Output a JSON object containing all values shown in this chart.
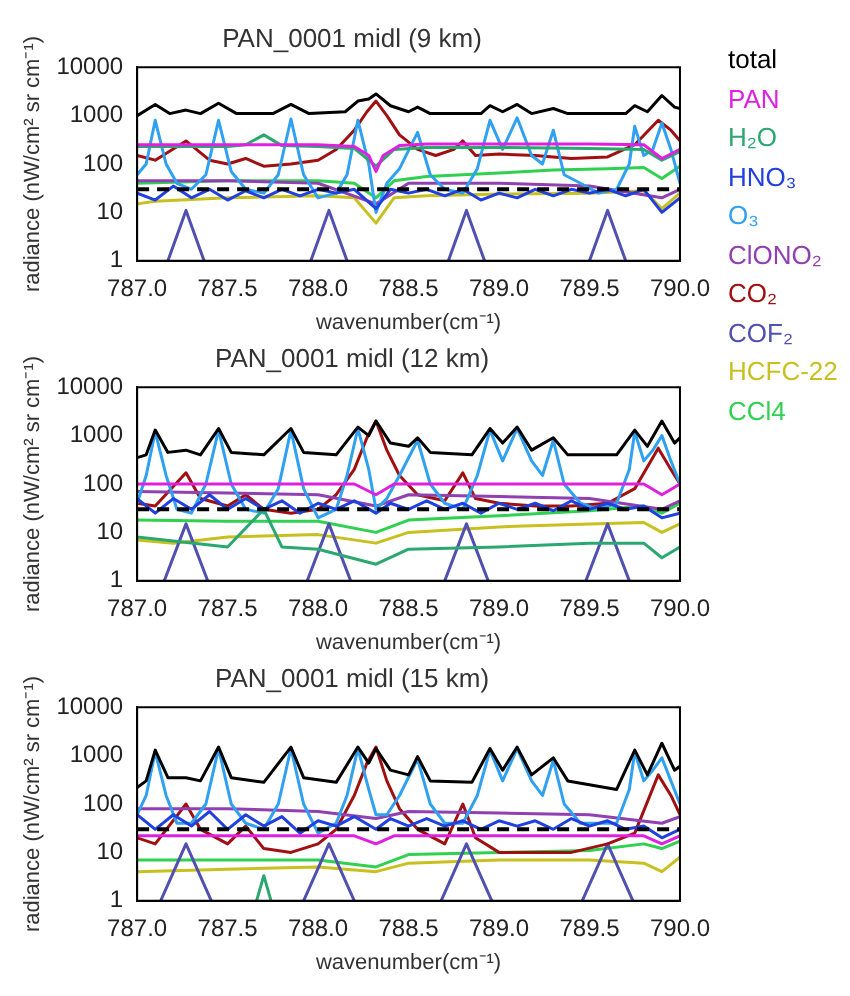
{
  "chart_data": [
    {
      "type": "line",
      "title": "PAN_0001 midl (9 km)",
      "xlabel": "wavenumber(cm⁻¹)",
      "ylabel": "radiance (nW/cm² sr cm⁻¹)",
      "log": "y",
      "legend": "right",
      "xlim": [
        787,
        790
      ],
      "xticks": [
        {
          "value": 787,
          "label": "787.0"
        },
        {
          "value": 787.5,
          "label": "787.5"
        },
        {
          "value": 788,
          "label": "788.0"
        },
        {
          "value": 788.5,
          "label": "788.5"
        },
        {
          "value": 789,
          "label": "789.0"
        },
        {
          "value": 789.5,
          "label": "789.5"
        },
        {
          "value": 790,
          "label": "790.0"
        }
      ],
      "ylim": [
        1,
        10000
      ],
      "yticks": [
        1,
        10,
        100,
        1000,
        10000
      ],
      "ref_lines": [
        {
          "axis": "y",
          "value": 30,
          "color": "#000000",
          "line_style": "dashed"
        }
      ],
      "series": [
        {
          "name": "total",
          "color": "#000000",
          "x": [
            787.0,
            787.1,
            787.18,
            787.27,
            787.35,
            787.45,
            787.55,
            787.75,
            787.85,
            787.95,
            788.15,
            788.22,
            788.28,
            788.32,
            788.4,
            788.5,
            788.55,
            788.62,
            788.9,
            788.95,
            789.02,
            789.1,
            789.18,
            789.3,
            789.38,
            789.7,
            789.75,
            789.82,
            789.9,
            789.97,
            790.0
          ],
          "values": [
            1000,
            1700,
            1100,
            1300,
            1100,
            1800,
            1100,
            1100,
            1700,
            1100,
            1200,
            2000,
            2200,
            2800,
            1600,
            1200,
            1500,
            1100,
            1100,
            1600,
            1200,
            1700,
            1100,
            1400,
            1100,
            1100,
            1600,
            1200,
            2600,
            1500,
            1400
          ]
        },
        {
          "name": "PAN",
          "color": "#e020e0",
          "x": [
            787.0,
            787.5,
            788.0,
            788.2,
            788.28,
            788.32,
            788.36,
            788.45,
            788.6,
            789.0,
            789.5,
            789.8,
            789.9,
            790.0
          ],
          "values": [
            250,
            250,
            250,
            230,
            150,
            70,
            150,
            240,
            260,
            260,
            260,
            250,
            130,
            200
          ]
        },
        {
          "name": "H₂O",
          "color": "#2aa870",
          "x": [
            787.0,
            787.5,
            787.6,
            787.7,
            787.8,
            788.0,
            788.2,
            788.32,
            788.42,
            788.6,
            789.0,
            789.5,
            789.8,
            789.9,
            790.0
          ],
          "values": [
            230,
            230,
            250,
            400,
            240,
            230,
            210,
            90,
            200,
            220,
            220,
            210,
            200,
            120,
            180
          ]
        },
        {
          "name": "HNO₃",
          "color": "#2040e0",
          "x": [
            787.0,
            787.1,
            787.2,
            787.3,
            787.4,
            787.5,
            787.6,
            787.7,
            787.8,
            787.9,
            788.0,
            788.1,
            788.2,
            788.32,
            788.4,
            788.5,
            788.6,
            788.7,
            788.8,
            788.9,
            789.0,
            789.1,
            789.2,
            789.3,
            789.4,
            789.5,
            789.6,
            789.7,
            789.8,
            789.9,
            790.0
          ],
          "values": [
            25,
            18,
            35,
            20,
            30,
            18,
            28,
            20,
            30,
            22,
            30,
            25,
            30,
            12,
            30,
            25,
            30,
            22,
            30,
            18,
            25,
            20,
            30,
            22,
            30,
            25,
            30,
            22,
            30,
            10,
            20
          ]
        },
        {
          "name": "O₃",
          "color": "#30a0f0",
          "x": [
            787.0,
            787.05,
            787.1,
            787.16,
            787.22,
            787.3,
            787.38,
            787.45,
            787.52,
            787.6,
            787.7,
            787.78,
            787.85,
            787.92,
            788.0,
            788.1,
            788.16,
            788.22,
            788.28,
            788.32,
            788.38,
            788.45,
            788.55,
            788.62,
            788.7,
            788.8,
            788.88,
            788.95,
            789.02,
            789.1,
            789.18,
            789.24,
            789.3,
            789.36,
            789.45,
            789.55,
            789.65,
            789.72,
            789.75,
            789.8,
            789.85,
            789.9,
            789.95,
            790.0
          ],
          "values": [
            60,
            100,
            800,
            100,
            40,
            30,
            60,
            800,
            70,
            30,
            25,
            60,
            850,
            60,
            20,
            25,
            60,
            800,
            100,
            10,
            40,
            80,
            450,
            60,
            30,
            25,
            80,
            800,
            200,
            900,
            150,
            100,
            500,
            60,
            40,
            25,
            30,
            100,
            600,
            150,
            200,
            700,
            200,
            40
          ]
        },
        {
          "name": "ClONO₂",
          "color": "#9040b0",
          "x": [
            787.0,
            787.5,
            788.0,
            788.32,
            788.5,
            789.0,
            789.5,
            789.9,
            790.0
          ],
          "values": [
            45,
            45,
            40,
            15,
            40,
            40,
            35,
            20,
            30
          ]
        },
        {
          "name": "CO₂",
          "color": "#a01010",
          "x": [
            787.0,
            787.1,
            787.27,
            787.4,
            787.5,
            787.6,
            787.7,
            787.85,
            788.0,
            788.1,
            788.2,
            788.27,
            788.32,
            788.38,
            788.45,
            788.55,
            788.65,
            788.75,
            788.8,
            788.87,
            789.0,
            789.2,
            789.4,
            789.6,
            789.75,
            789.88,
            789.95,
            790.0
          ],
          "values": [
            150,
            120,
            300,
            120,
            100,
            130,
            90,
            100,
            120,
            200,
            500,
            1200,
            2000,
            1000,
            400,
            200,
            150,
            200,
            300,
            150,
            160,
            150,
            130,
            140,
            250,
            800,
            500,
            300
          ]
        },
        {
          "name": "COF₂",
          "color": "#5050b0",
          "x": [
            787.17,
            787.27,
            787.37,
            787.7,
            787.96,
            788.06,
            788.16,
            788.5,
            788.72,
            788.82,
            788.92,
            789.2,
            789.5,
            789.6,
            789.7
          ],
          "values": [
            1,
            11,
            1,
            null,
            1,
            11,
            1,
            null,
            1,
            11,
            1,
            null,
            1,
            11,
            1
          ]
        },
        {
          "name": "HCFC-22",
          "color": "#c8c020",
          "x": [
            787.0,
            787.1,
            787.5,
            788.0,
            788.2,
            788.32,
            788.42,
            788.6,
            789.0,
            789.5,
            789.8,
            789.9,
            790.0
          ],
          "values": [
            15,
            17,
            20,
            22,
            20,
            6,
            20,
            22,
            24,
            25,
            28,
            12,
            25
          ]
        },
        {
          "name": "CCl4",
          "color": "#30d050",
          "x": [
            787.0,
            787.5,
            788.0,
            788.2,
            788.32,
            788.42,
            788.6,
            789.0,
            789.3,
            789.6,
            789.8,
            789.9,
            790.0
          ],
          "values": [
            40,
            45,
            45,
            40,
            20,
            45,
            55,
            65,
            75,
            80,
            85,
            50,
            90
          ]
        }
      ]
    },
    {
      "type": "line",
      "title": "PAN_0001 midl (12 km)",
      "xlabel": "wavenumber(cm⁻¹)",
      "ylabel": "radiance (nW/cm² sr cm⁻¹)",
      "log": "y",
      "xlim": [
        787,
        790
      ],
      "xticks": [
        {
          "value": 787,
          "label": "787.0"
        },
        {
          "value": 787.5,
          "label": "787.5"
        },
        {
          "value": 788,
          "label": "788.0"
        },
        {
          "value": 788.5,
          "label": "788.5"
        },
        {
          "value": 789,
          "label": "789.0"
        },
        {
          "value": 789.5,
          "label": "789.5"
        },
        {
          "value": 790,
          "label": "790.0"
        }
      ],
      "ylim": [
        1,
        10000
      ],
      "yticks": [
        1,
        10,
        100,
        1000,
        10000
      ],
      "ref_lines": [
        {
          "axis": "y",
          "value": 30,
          "color": "#000000",
          "line_style": "dashed"
        }
      ],
      "series": [
        {
          "color": "#000000",
          "x": [
            787.0,
            787.05,
            787.1,
            787.17,
            787.27,
            787.35,
            787.45,
            787.52,
            787.7,
            787.85,
            787.92,
            788.1,
            788.22,
            788.28,
            788.32,
            788.4,
            788.5,
            788.55,
            788.62,
            788.85,
            788.95,
            789.02,
            789.1,
            789.18,
            789.3,
            789.38,
            789.65,
            789.75,
            789.82,
            789.9,
            789.97,
            790.0
          ],
          "values": [
            350,
            400,
            1300,
            450,
            500,
            400,
            1400,
            450,
            400,
            1400,
            450,
            400,
            1500,
            1000,
            2000,
            700,
            600,
            900,
            450,
            400,
            1400,
            700,
            1500,
            500,
            900,
            400,
            400,
            1300,
            600,
            2000,
            700,
            900
          ]
        },
        {
          "color": "#e020e0",
          "x": [
            787.0,
            788.2,
            788.32,
            788.42,
            789.8,
            789.9,
            790.0
          ],
          "values": [
            100,
            100,
            60,
            100,
            100,
            60,
            100
          ]
        },
        {
          "color": "#2aa870",
          "x": [
            787.0,
            787.5,
            787.7,
            787.8,
            788.0,
            788.32,
            788.5,
            789.0,
            789.5,
            789.8,
            789.9,
            790.0
          ],
          "values": [
            8,
            5,
            30,
            5,
            4.5,
            2.2,
            4.5,
            5,
            6,
            6,
            3,
            5
          ]
        },
        {
          "color": "#2040e0",
          "x": [
            787.0,
            787.1,
            787.2,
            787.3,
            787.4,
            787.5,
            787.6,
            787.7,
            787.8,
            787.9,
            788.0,
            788.1,
            788.2,
            788.32,
            788.4,
            788.5,
            788.6,
            788.7,
            788.8,
            788.9,
            789.0,
            789.1,
            789.2,
            789.3,
            789.4,
            789.5,
            789.6,
            789.7,
            789.8,
            789.9,
            790.0
          ],
          "values": [
            50,
            25,
            50,
            30,
            60,
            30,
            50,
            30,
            45,
            25,
            40,
            30,
            45,
            25,
            40,
            30,
            45,
            30,
            40,
            25,
            40,
            30,
            40,
            28,
            45,
            30,
            40,
            30,
            35,
            20,
            25
          ]
        },
        {
          "color": "#30a0f0",
          "x": [
            787.0,
            787.05,
            787.1,
            787.16,
            787.22,
            787.3,
            787.38,
            787.45,
            787.52,
            787.6,
            787.7,
            787.78,
            787.85,
            787.92,
            788.0,
            788.1,
            788.16,
            788.22,
            788.28,
            788.32,
            788.38,
            788.45,
            788.55,
            788.62,
            788.7,
            788.8,
            788.88,
            788.95,
            789.02,
            789.1,
            789.18,
            789.24,
            789.3,
            789.36,
            789.45,
            789.55,
            789.65,
            789.72,
            789.75,
            789.8,
            789.85,
            789.9,
            789.95,
            790.0
          ],
          "values": [
            40,
            150,
            1200,
            150,
            30,
            25,
            100,
            1300,
            100,
            30,
            25,
            80,
            1300,
            80,
            20,
            30,
            150,
            1400,
            200,
            30,
            50,
            150,
            800,
            100,
            40,
            30,
            150,
            1300,
            300,
            1400,
            300,
            150,
            800,
            100,
            40,
            30,
            40,
            200,
            1200,
            300,
            500,
            1000,
            300,
            100
          ]
        },
        {
          "color": "#9040b0",
          "x": [
            787.0,
            787.5,
            788.0,
            788.32,
            788.5,
            789.0,
            789.5,
            789.9,
            790.0
          ],
          "values": [
            70,
            65,
            60,
            35,
            60,
            55,
            50,
            30,
            45
          ]
        },
        {
          "color": "#a01010",
          "x": [
            787.0,
            787.1,
            787.27,
            787.35,
            787.5,
            787.6,
            787.7,
            787.85,
            788.0,
            788.1,
            788.2,
            788.27,
            788.32,
            788.38,
            788.45,
            788.55,
            788.7,
            788.8,
            788.87,
            789.0,
            789.2,
            789.4,
            789.6,
            789.75,
            789.88,
            789.95,
            790.0
          ],
          "values": [
            40,
            35,
            170,
            50,
            35,
            60,
            30,
            25,
            30,
            60,
            200,
            900,
            2000,
            500,
            150,
            60,
            45,
            170,
            50,
            40,
            35,
            35,
            40,
            80,
            550,
            200,
            100
          ]
        },
        {
          "color": "#5050b0",
          "x": [
            787.15,
            787.27,
            787.39,
            787.7,
            787.94,
            788.06,
            788.18,
            788.5,
            788.7,
            788.82,
            788.94,
            789.2,
            789.48,
            789.6,
            789.72
          ],
          "values": [
            1,
            15,
            1,
            null,
            1,
            15,
            1,
            null,
            1,
            15,
            1,
            null,
            1,
            15,
            1
          ]
        },
        {
          "color": "#c8c020",
          "x": [
            787.0,
            787.2,
            787.5,
            788.0,
            788.32,
            788.5,
            789.0,
            789.5,
            789.8,
            789.9,
            790.0
          ],
          "values": [
            7,
            6,
            8,
            9,
            6,
            10,
            13,
            15,
            16,
            10,
            15
          ]
        },
        {
          "color": "#30d050",
          "x": [
            787.0,
            787.5,
            788.0,
            788.32,
            788.5,
            789.0,
            789.5,
            789.8,
            789.9,
            790.0
          ],
          "values": [
            18,
            17,
            17,
            10,
            18,
            22,
            28,
            35,
            25,
            40
          ]
        }
      ]
    },
    {
      "type": "line",
      "title": "PAN_0001 midl (15 km)",
      "xlabel": "wavenumber(cm⁻¹)",
      "ylabel": "radiance (nW/cm² sr cm⁻¹)",
      "log": "y",
      "xlim": [
        787,
        790
      ],
      "xticks": [
        {
          "value": 787,
          "label": "787.0"
        },
        {
          "value": 787.5,
          "label": "787.5"
        },
        {
          "value": 788,
          "label": "788.0"
        },
        {
          "value": 788.5,
          "label": "788.5"
        },
        {
          "value": 789,
          "label": "789.0"
        },
        {
          "value": 789.5,
          "label": "789.5"
        },
        {
          "value": 790,
          "label": "790.0"
        }
      ],
      "ylim": [
        1,
        10000
      ],
      "yticks": [
        1,
        10,
        100,
        1000,
        10000
      ],
      "ref_lines": [
        {
          "axis": "y",
          "value": 30,
          "color": "#000000",
          "line_style": "dashed"
        }
      ],
      "series": [
        {
          "color": "#000000",
          "x": [
            787.0,
            787.05,
            787.1,
            787.17,
            787.27,
            787.35,
            787.45,
            787.52,
            787.7,
            787.85,
            787.92,
            788.1,
            788.22,
            788.28,
            788.32,
            788.4,
            788.5,
            788.55,
            788.62,
            788.85,
            788.95,
            789.02,
            789.1,
            789.18,
            789.3,
            789.38,
            789.65,
            789.75,
            789.82,
            789.9,
            789.97,
            790.0
          ],
          "values": [
            220,
            300,
            1300,
            350,
            350,
            300,
            1500,
            350,
            280,
            1500,
            350,
            280,
            1500,
            700,
            1400,
            500,
            400,
            950,
            300,
            280,
            1400,
            500,
            1500,
            400,
            900,
            300,
            200,
            1300,
            400,
            1800,
            500,
            600
          ]
        },
        {
          "color": "#e020e0",
          "x": [
            787.0,
            788.2,
            788.32,
            788.42,
            789.8,
            789.9,
            790.0
          ],
          "values": [
            22,
            22,
            15,
            22,
            22,
            15,
            22
          ]
        },
        {
          "color": "#2aa870",
          "x": [
            787.66,
            787.7,
            787.74
          ],
          "values": [
            1,
            3.3,
            1
          ]
        },
        {
          "color": "#2040e0",
          "x": [
            787.0,
            787.1,
            787.2,
            787.3,
            787.4,
            787.5,
            787.6,
            787.7,
            787.8,
            787.9,
            788.0,
            788.1,
            788.2,
            788.32,
            788.4,
            788.5,
            788.6,
            788.7,
            788.8,
            788.9,
            789.0,
            789.1,
            789.2,
            789.3,
            789.4,
            789.5,
            789.6,
            789.7,
            789.8,
            789.9,
            790.0
          ],
          "values": [
            60,
            30,
            60,
            35,
            70,
            30,
            60,
            35,
            55,
            25,
            45,
            35,
            55,
            30,
            50,
            35,
            50,
            35,
            45,
            30,
            45,
            35,
            45,
            30,
            50,
            35,
            45,
            30,
            35,
            20,
            30
          ]
        },
        {
          "color": "#30a0f0",
          "x": [
            787.0,
            787.05,
            787.1,
            787.16,
            787.22,
            787.3,
            787.38,
            787.45,
            787.52,
            787.6,
            787.7,
            787.78,
            787.85,
            787.92,
            788.0,
            788.1,
            788.16,
            788.22,
            788.28,
            788.32,
            788.38,
            788.45,
            788.55,
            788.62,
            788.7,
            788.8,
            788.88,
            788.95,
            789.02,
            789.1,
            789.18,
            789.24,
            789.3,
            789.36,
            789.45,
            789.55,
            789.65,
            789.72,
            789.75,
            789.8,
            789.85,
            789.9,
            789.95,
            790.0
          ],
          "values": [
            60,
            150,
            1200,
            150,
            40,
            40,
            100,
            1400,
            100,
            40,
            30,
            100,
            1400,
            100,
            25,
            40,
            150,
            1400,
            200,
            60,
            60,
            150,
            850,
            100,
            40,
            40,
            150,
            1300,
            300,
            1400,
            300,
            150,
            800,
            100,
            40,
            40,
            40,
            200,
            1200,
            300,
            500,
            900,
            300,
            100
          ]
        },
        {
          "color": "#9040b0",
          "x": [
            787.0,
            787.5,
            788.0,
            788.32,
            788.5,
            789.0,
            789.5,
            789.9,
            790.0
          ],
          "values": [
            80,
            80,
            70,
            50,
            70,
            65,
            60,
            40,
            55
          ]
        },
        {
          "color": "#a01010",
          "x": [
            787.0,
            787.1,
            787.27,
            787.35,
            787.5,
            787.6,
            787.7,
            787.85,
            788.0,
            788.1,
            788.2,
            788.27,
            788.32,
            788.38,
            788.45,
            788.55,
            788.7,
            788.8,
            788.87,
            789.0,
            789.2,
            789.4,
            789.6,
            789.75,
            789.88,
            789.95,
            790.0
          ],
          "values": [
            20,
            15,
            100,
            30,
            15,
            35,
            12,
            10,
            15,
            30,
            150,
            700,
            1500,
            300,
            80,
            30,
            15,
            100,
            20,
            10,
            10,
            10,
            15,
            25,
            400,
            150,
            60
          ]
        },
        {
          "color": "#5050b0",
          "x": [
            787.13,
            787.27,
            787.41,
            787.7,
            787.92,
            788.06,
            788.2,
            788.5,
            788.68,
            788.82,
            788.96,
            789.2,
            789.46,
            789.6,
            789.74
          ],
          "values": [
            1,
            15,
            1,
            null,
            1,
            15,
            1,
            null,
            1,
            15,
            1,
            null,
            1,
            15,
            1
          ]
        },
        {
          "color": "#c8c020",
          "x": [
            787.0,
            787.5,
            788.0,
            788.32,
            788.5,
            789.0,
            789.5,
            789.8,
            789.9,
            790.0
          ],
          "values": [
            4,
            4.5,
            5,
            4,
            6,
            7,
            7,
            6,
            4,
            8
          ]
        },
        {
          "color": "#30d050",
          "x": [
            787.0,
            787.5,
            788.0,
            788.32,
            788.5,
            789.0,
            789.5,
            789.8,
            789.9,
            790.0
          ],
          "values": [
            7,
            7,
            7,
            5,
            9,
            10,
            11,
            15,
            12,
            17
          ]
        }
      ]
    }
  ]
}
